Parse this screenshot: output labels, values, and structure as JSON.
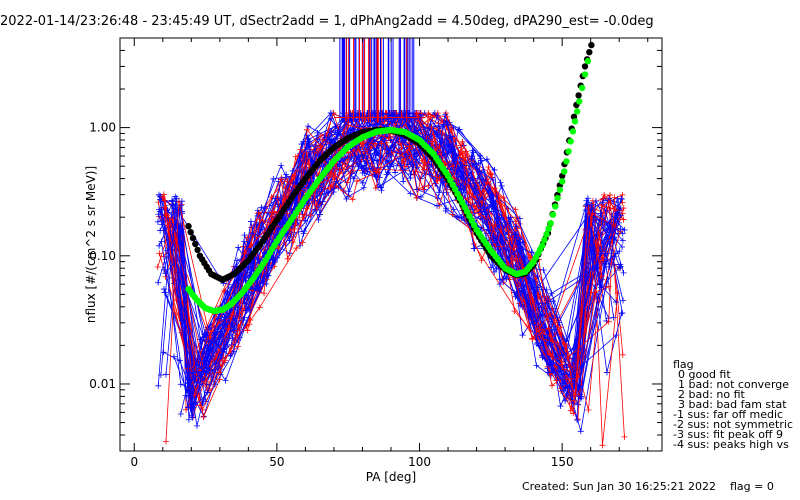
{
  "chart_data": {
    "type": "line",
    "title": "2022-01-14/23:26:48 - 23:45:49 UT, dSectr2add = 1, dPhAng2add = 4.50deg, dPA290_est=  -0.0deg",
    "xlabel": "PA [deg]",
    "ylabel": "nflux [#/(cm^2 s sr MeV)]",
    "xlim": [
      -5,
      185
    ],
    "ylim": [
      0.003,
      5.0
    ],
    "yscale": "log",
    "x_ticks": [
      0,
      50,
      100,
      150
    ],
    "y_ticks": [
      0.01,
      0.1,
      1.0
    ],
    "y_tick_labels": [
      "0.01",
      "0.10",
      "1.00"
    ],
    "grid": false,
    "legend_position": "right-bottom",
    "colors": {
      "red": "#ff0000",
      "blue": "#0000ff",
      "black": "#000000",
      "green": "#00ff00"
    },
    "fit_curves": [
      {
        "color": "black",
        "x": [
          19,
          23,
          27,
          31,
          35,
          40,
          45,
          50,
          55,
          60,
          65,
          70,
          75,
          80,
          85,
          90,
          95,
          100,
          105,
          110,
          115,
          120,
          125,
          130,
          134,
          137,
          140,
          145,
          150,
          155,
          158,
          161
        ],
        "y": [
          0.17,
          0.1,
          0.072,
          0.065,
          0.072,
          0.092,
          0.13,
          0.19,
          0.28,
          0.4,
          0.55,
          0.7,
          0.83,
          0.92,
          0.96,
          0.95,
          0.88,
          0.75,
          0.57,
          0.39,
          0.25,
          0.15,
          0.1,
          0.078,
          0.071,
          0.073,
          0.085,
          0.15,
          0.42,
          1.5,
          3.0,
          5.0
        ]
      },
      {
        "color": "green",
        "x": [
          19,
          22,
          25,
          28,
          31,
          34,
          38,
          42,
          46,
          50,
          55,
          60,
          65,
          70,
          75,
          80,
          85,
          90,
          95,
          100,
          105,
          110,
          115,
          120,
          125,
          130,
          134,
          137,
          140,
          143,
          146,
          150,
          153,
          156,
          158,
          160
        ],
        "y": [
          0.055,
          0.045,
          0.039,
          0.037,
          0.038,
          0.042,
          0.052,
          0.068,
          0.092,
          0.13,
          0.19,
          0.28,
          0.4,
          0.55,
          0.71,
          0.84,
          0.93,
          0.96,
          0.92,
          0.8,
          0.62,
          0.42,
          0.26,
          0.16,
          0.11,
          0.08,
          0.072,
          0.075,
          0.09,
          0.12,
          0.18,
          0.38,
          0.78,
          1.6,
          2.6,
          4.2
        ]
      }
    ],
    "spike_region": {
      "x_range": [
        72,
        98
      ],
      "y_from": 1.1,
      "y_to": 5.0
    }
  },
  "legend": {
    "title": "flag",
    "items": [
      "0 good fit",
      "1 bad: not converge",
      "2 bad: no fit",
      "3 bad: bad fam stat",
      "-1 sus: far off medic",
      "-2 sus: not symmetric",
      "-3 sus: fit peak off 9",
      "-4 sus: peaks high vs"
    ]
  },
  "footer": {
    "created": "Created: Sun Jan 30 16:25:21 2022",
    "flag": "flag = 0"
  }
}
